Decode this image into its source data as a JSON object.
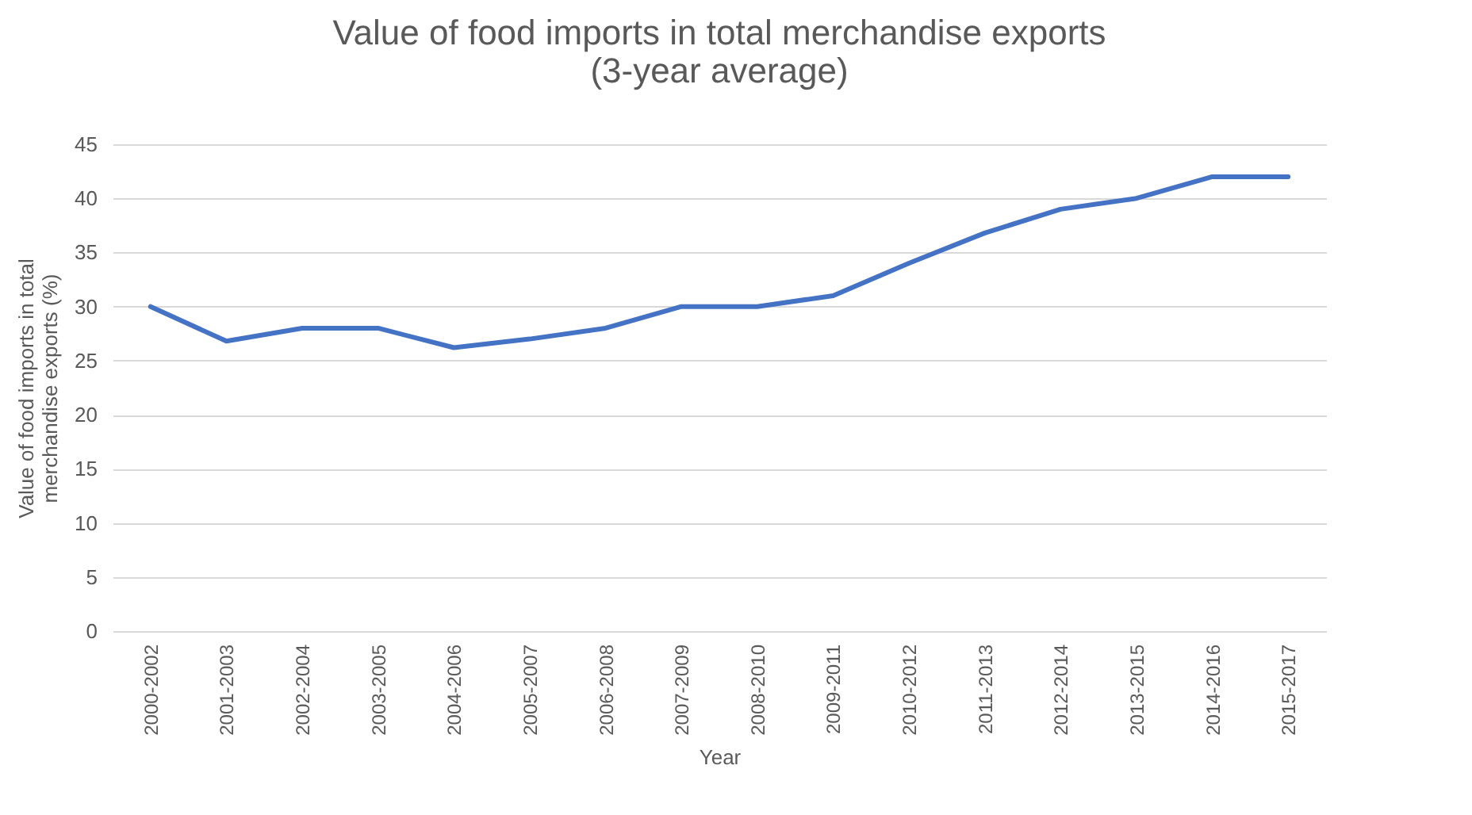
{
  "chart_data": {
    "type": "line",
    "title": "Value of food imports in total merchandise exports\n(3-year average)",
    "xlabel": "Year",
    "ylabel": "Value of food imports in total\nmerchandise exports (%)",
    "categories": [
      "2000-2002",
      "2001-2003",
      "2002-2004",
      "2003-2005",
      "2004-2006",
      "2005-2007",
      "2006-2008",
      "2007-2009",
      "2008-2010",
      "2009-2011",
      "2010-2012",
      "2011-2013",
      "2012-2014",
      "2013-2015",
      "2014-2016",
      "2015-2017"
    ],
    "series": [
      {
        "color": "#4472c4",
        "values": [
          30,
          26.8,
          28,
          28,
          26.2,
          27,
          28,
          30,
          30,
          31,
          34,
          36.8,
          39,
          40,
          42,
          42
        ]
      }
    ],
    "ylim": [
      0,
      45
    ],
    "yticks": [
      0,
      5,
      10,
      15,
      20,
      25,
      30,
      35,
      40,
      45
    ],
    "grid": "y",
    "legend": false,
    "marker": "none",
    "line_style": "solid"
  }
}
